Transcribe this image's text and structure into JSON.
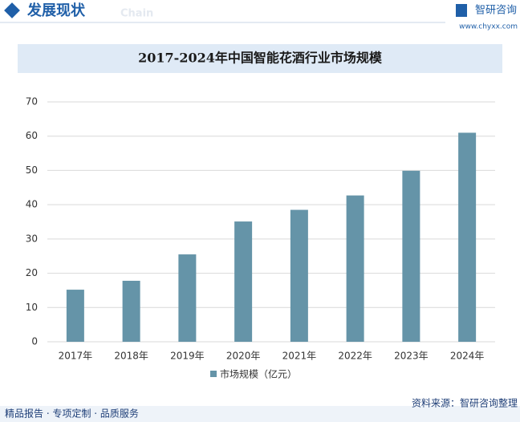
{
  "header": {
    "title": "发展现状",
    "subtitle": "Chain",
    "brand": "智研咨询",
    "url": "www.chyxx.com"
  },
  "chart_data": {
    "type": "bar",
    "title": "2017-2024年中国智能花酒行业市场规模",
    "categories": [
      "2017年",
      "2018年",
      "2019年",
      "2020年",
      "2021年",
      "2022年",
      "2023年",
      "2024年"
    ],
    "series": [
      {
        "name": "市场规模（亿元）",
        "color": "#6594a8",
        "values": [
          15.2,
          17.8,
          25.5,
          35.1,
          38.5,
          42.7,
          49.9,
          61.0
        ]
      }
    ],
    "ylim": [
      0,
      70
    ],
    "yticks": [
      0,
      10,
      20,
      30,
      40,
      50,
      60,
      70
    ],
    "grid": true,
    "legend": "bottom"
  },
  "footer": {
    "tagline": "精品报告 · 专项定制 · 品质服务",
    "source": "资料来源：智研咨询整理"
  }
}
